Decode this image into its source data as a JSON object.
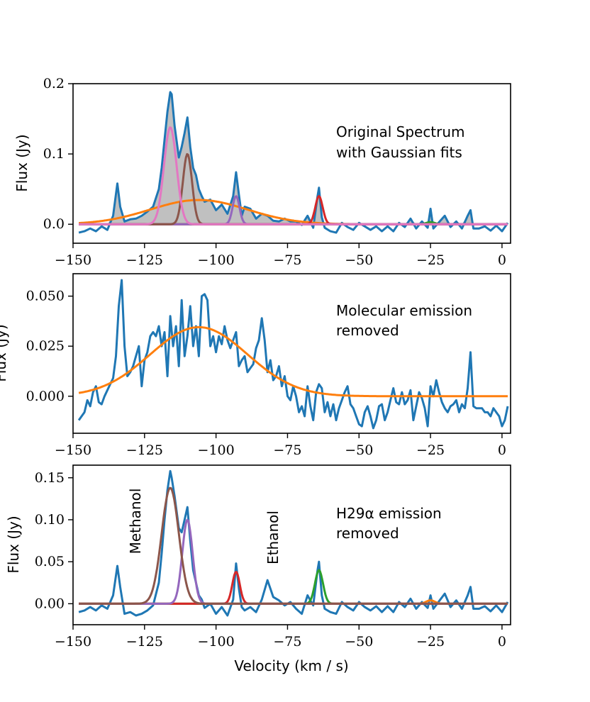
{
  "colors": {
    "observed": "#1f77b4",
    "orange": "#ff7f0e",
    "green": "#2ca02c",
    "red": "#d62728",
    "purple": "#9467bd",
    "brown": "#8c564b",
    "pink": "#e377c2",
    "fill": "#bdbdbd"
  },
  "chart_data": [
    {
      "type": "line",
      "ylabel": "Flux (Jy)",
      "xlabel": "",
      "xlim": [
        -150,
        3
      ],
      "ylim": [
        -0.027,
        0.2
      ],
      "xticks": [
        -150,
        -125,
        -100,
        -75,
        -50,
        -25,
        0
      ],
      "yticks": [
        0.0,
        0.1,
        0.2
      ],
      "ytick_labels": [
        "0.0",
        "0.1",
        "0.2"
      ],
      "annotations": [
        {
          "text": "Original Spectrum",
          "pos": "right"
        },
        {
          "text": "with Gaussian fits",
          "pos": "right"
        }
      ],
      "filled_under_observed": true,
      "series": [
        {
          "role": "observed",
          "color": "#1f77b4",
          "x": [
            -148,
            -146,
            -144,
            -142,
            -140,
            -138,
            -136,
            -134.5,
            -133.5,
            -132,
            -130,
            -128,
            -126,
            -124,
            -122,
            -120,
            -119,
            -118,
            -117,
            -116,
            -115.5,
            -114.5,
            -113,
            -112,
            -111,
            -110,
            -109,
            -108,
            -107,
            -106,
            -105,
            -104,
            -102,
            -100,
            -98,
            -96,
            -94,
            -93,
            -92,
            -91,
            -90,
            -88,
            -86,
            -84,
            -82,
            -80,
            -78,
            -76,
            -74,
            -72,
            -70,
            -68,
            -66,
            -64.5,
            -64,
            -63,
            -62,
            -60,
            -58,
            -56,
            -54,
            -52,
            -50,
            -48,
            -46,
            -44,
            -42,
            -40,
            -38,
            -36,
            -34,
            -32,
            -30,
            -28,
            -26,
            -25,
            -24,
            -22,
            -20,
            -18,
            -16,
            -14,
            -12,
            -11,
            -10,
            -8,
            -6,
            -4,
            -2,
            0,
            2
          ],
          "y": [
            -0.012,
            -0.01,
            -0.006,
            -0.01,
            -0.003,
            -0.008,
            0.012,
            0.058,
            0.025,
            0.004,
            0.007,
            0.008,
            0.012,
            0.018,
            0.025,
            0.05,
            0.08,
            0.12,
            0.16,
            0.188,
            0.185,
            0.14,
            0.095,
            0.11,
            0.13,
            0.152,
            0.11,
            0.08,
            0.07,
            0.05,
            0.04,
            0.032,
            0.035,
            0.02,
            0.028,
            0.015,
            0.04,
            0.074,
            0.042,
            0.012,
            0.025,
            0.022,
            0.008,
            0.015,
            0.012,
            0.005,
            0.004,
            0.008,
            0.004,
            0.004,
            -0.001,
            0.012,
            -0.005,
            0.04,
            0.052,
            0.01,
            -0.005,
            -0.01,
            -0.012,
            0.002,
            -0.004,
            -0.008,
            0.002,
            -0.003,
            -0.008,
            -0.003,
            -0.01,
            -0.003,
            -0.01,
            0.002,
            -0.004,
            0.008,
            -0.006,
            0.004,
            -0.005,
            0.022,
            -0.006,
            0.003,
            0.012,
            -0.004,
            0.004,
            -0.006,
            0.012,
            0.02,
            -0.006,
            -0.006,
            -0.003,
            -0.009,
            -0.002,
            -0.01,
            0.002
          ]
        },
        {
          "role": "fit",
          "color": "#ff7f0e",
          "model": "gauss",
          "amp": 0.0345,
          "center": -106,
          "sigma": 17
        },
        {
          "role": "fit",
          "color": "#2ca02c",
          "model": "gauss",
          "amp": 0.003,
          "center": -25,
          "sigma": 1.5
        },
        {
          "role": "fit",
          "color": "#d62728",
          "model": "gauss",
          "amp": 0.04,
          "center": -64,
          "sigma": 1.3
        },
        {
          "role": "fit",
          "color": "#9467bd",
          "model": "gauss",
          "amp": 0.04,
          "center": -93,
          "sigma": 1.2
        },
        {
          "role": "fit",
          "color": "#8c564b",
          "model": "gauss",
          "amp": 0.1,
          "center": -110,
          "sigma": 1.6
        },
        {
          "role": "fit",
          "color": "#e377c2",
          "model": "gauss",
          "amp": 0.138,
          "center": -116,
          "sigma": 2.2
        }
      ]
    },
    {
      "type": "line",
      "ylabel": "Flux (Jy)",
      "xlabel": "",
      "xlim": [
        -150,
        3
      ],
      "ylim": [
        -0.0185,
        0.0612
      ],
      "xticks": [
        -150,
        -125,
        -100,
        -75,
        -50,
        -25,
        0
      ],
      "yticks": [
        0.0,
        0.025,
        0.05
      ],
      "ytick_labels": [
        "0.000",
        "0.025",
        "0.050"
      ],
      "annotations": [
        {
          "text": "Molecular emission",
          "pos": "right"
        },
        {
          "text": "removed",
          "pos": "right"
        }
      ],
      "series": [
        {
          "role": "observed",
          "color": "#1f77b4",
          "x": [
            -148,
            -147,
            -146,
            -145,
            -144,
            -143,
            -142,
            -141,
            -140,
            -139,
            -138,
            -137,
            -136,
            -135,
            -134,
            -133,
            -132,
            -131,
            -130,
            -129,
            -128,
            -127,
            -126,
            -125,
            -124,
            -123,
            -122,
            -121,
            -120,
            -119,
            -118,
            -117,
            -116,
            -115,
            -114,
            -113,
            -112,
            -111,
            -110,
            -109,
            -108,
            -107,
            -106,
            -105,
            -104,
            -103,
            -102,
            -101,
            -100,
            -99,
            -98,
            -97,
            -96,
            -95,
            -94,
            -93,
            -92,
            -91,
            -90,
            -89,
            -88,
            -87,
            -86,
            -85,
            -84,
            -83,
            -82,
            -81,
            -80,
            -79,
            -78,
            -77,
            -76,
            -75,
            -74,
            -73,
            -72,
            -71,
            -70,
            -69,
            -68,
            -67,
            -66,
            -65,
            -64,
            -63,
            -62,
            -61,
            -60,
            -59,
            -58,
            -57,
            -56,
            -55,
            -54,
            -53,
            -52,
            -51,
            -50,
            -49,
            -48,
            -47,
            -46,
            -45,
            -44,
            -43,
            -42,
            -41,
            -40,
            -39,
            -38,
            -37,
            -36,
            -35,
            -34,
            -33,
            -32,
            -31,
            -30,
            -29,
            -28,
            -27,
            -26,
            -25,
            -24,
            -23,
            -22,
            -21,
            -20,
            -19,
            -18,
            -17,
            -16,
            -15,
            -14,
            -13,
            -12,
            -11,
            -10,
            -9,
            -8,
            -7,
            -6,
            -5,
            -4,
            -3,
            -2,
            -1,
            0,
            1,
            2
          ],
          "y": [
            -0.012,
            -0.01,
            -0.008,
            -0.002,
            -0.005,
            0.002,
            0.005,
            -0.003,
            -0.004,
            0.0,
            0.003,
            0.006,
            0.009,
            0.02,
            0.045,
            0.058,
            0.025,
            0.01,
            0.012,
            0.015,
            0.02,
            0.025,
            0.005,
            0.018,
            0.022,
            0.03,
            0.032,
            0.03,
            0.035,
            0.025,
            0.032,
            0.01,
            0.04,
            0.025,
            0.035,
            0.015,
            0.048,
            0.02,
            0.03,
            0.045,
            0.025,
            0.035,
            0.02,
            0.05,
            0.051,
            0.048,
            0.025,
            0.03,
            0.022,
            0.03,
            0.026,
            0.035,
            0.028,
            0.024,
            0.028,
            0.032,
            0.015,
            0.018,
            0.02,
            0.012,
            0.014,
            0.016,
            0.024,
            0.028,
            0.039,
            0.028,
            0.012,
            0.018,
            0.008,
            0.01,
            0.015,
            0.005,
            0.01,
            0.0,
            -0.002,
            0.005,
            0.0,
            -0.008,
            -0.005,
            -0.01,
            0.005,
            -0.005,
            -0.012,
            0.002,
            0.006,
            0.004,
            -0.008,
            -0.003,
            -0.01,
            -0.004,
            -0.012,
            -0.006,
            -0.002,
            0.002,
            0.005,
            -0.004,
            -0.006,
            -0.01,
            -0.014,
            -0.015,
            -0.008,
            -0.005,
            -0.01,
            -0.016,
            -0.012,
            -0.005,
            -0.004,
            -0.012,
            -0.008,
            -0.002,
            0.004,
            -0.003,
            -0.004,
            0.002,
            -0.004,
            -0.002,
            0.003,
            -0.012,
            -0.005,
            0.002,
            -0.001,
            -0.006,
            -0.015,
            0.005,
            0.0,
            0.008,
            0.002,
            -0.003,
            -0.006,
            -0.008,
            -0.005,
            -0.004,
            -0.002,
            -0.008,
            -0.004,
            -0.006,
            0.004,
            0.022,
            -0.005,
            -0.006,
            -0.006,
            -0.006,
            -0.008,
            -0.008,
            -0.01,
            -0.006,
            -0.008,
            -0.01,
            -0.015,
            -0.012,
            -0.005
          ]
        },
        {
          "role": "fit",
          "color": "#ff7f0e",
          "model": "gauss",
          "amp": 0.0345,
          "center": -106,
          "sigma": 17
        }
      ]
    },
    {
      "type": "line",
      "ylabel": "Flux (Jy)",
      "xlabel": "Velocity (km / s)",
      "xlim": [
        -150,
        3
      ],
      "ylim": [
        -0.025,
        0.165
      ],
      "xticks": [
        -150,
        -125,
        -100,
        -75,
        -50,
        -25,
        0
      ],
      "yticks": [
        0.0,
        0.05,
        0.1,
        0.15
      ],
      "ytick_labels": [
        "0.00",
        "0.05",
        "0.10",
        "0.15"
      ],
      "annotations": [
        {
          "text": "Methanol",
          "pos": "vertical"
        },
        {
          "text": "Ethanol",
          "pos": "vertical"
        },
        {
          "text": "H29α emission",
          "pos": "right"
        },
        {
          "text": "removed",
          "pos": "right"
        }
      ],
      "series": [
        {
          "role": "observed",
          "color": "#1f77b4",
          "x": [
            -148,
            -146,
            -144,
            -142,
            -140,
            -138,
            -136,
            -134.5,
            -133.5,
            -132,
            -130,
            -128,
            -126,
            -124,
            -122,
            -120,
            -119,
            -118,
            -117,
            -116,
            -115.5,
            -114.5,
            -113,
            -112,
            -111,
            -110,
            -109,
            -108,
            -107,
            -106,
            -105,
            -104,
            -102,
            -100,
            -98,
            -96,
            -94,
            -93,
            -92,
            -91,
            -90,
            -88,
            -86,
            -84,
            -82,
            -80,
            -78,
            -76,
            -74,
            -72,
            -70,
            -68,
            -66,
            -64.5,
            -64,
            -63,
            -62,
            -60,
            -58,
            -56,
            -54,
            -52,
            -50,
            -48,
            -46,
            -44,
            -42,
            -40,
            -38,
            -36,
            -34,
            -32,
            -30,
            -28,
            -26,
            -25,
            -24,
            -22,
            -20,
            -18,
            -16,
            -14,
            -12,
            -11,
            -10,
            -8,
            -6,
            -4,
            -2,
            0,
            2
          ],
          "y": [
            -0.01,
            -0.008,
            -0.004,
            -0.008,
            -0.002,
            -0.006,
            0.01,
            0.045,
            0.02,
            -0.012,
            -0.01,
            -0.014,
            -0.012,
            -0.008,
            -0.002,
            0.025,
            0.06,
            0.1,
            0.135,
            0.158,
            0.15,
            0.128,
            0.09,
            0.085,
            0.1,
            0.115,
            0.075,
            0.04,
            0.025,
            0.01,
            0.005,
            -0.005,
            0.0,
            -0.012,
            -0.004,
            -0.014,
            0.005,
            0.048,
            0.018,
            -0.004,
            -0.008,
            -0.004,
            -0.01,
            0.005,
            0.028,
            0.008,
            0.004,
            -0.002,
            0.002,
            -0.006,
            -0.012,
            0.01,
            -0.002,
            0.04,
            0.05,
            0.01,
            -0.006,
            -0.01,
            -0.012,
            0.002,
            -0.004,
            -0.008,
            0.002,
            -0.004,
            -0.008,
            -0.003,
            -0.01,
            -0.003,
            -0.01,
            0.002,
            -0.004,
            0.006,
            -0.006,
            0.002,
            -0.005,
            0.01,
            -0.006,
            0.003,
            0.012,
            -0.004,
            0.004,
            -0.006,
            0.01,
            0.02,
            -0.006,
            -0.006,
            -0.003,
            -0.009,
            -0.002,
            -0.01,
            0.002
          ]
        },
        {
          "role": "fit",
          "color": "#ff7f0e",
          "model": "gauss",
          "amp": 0.004,
          "center": -25,
          "sigma": 1.5
        },
        {
          "role": "fit",
          "color": "#2ca02c",
          "model": "gauss",
          "amp": 0.04,
          "center": -64,
          "sigma": 1.4
        },
        {
          "role": "fit",
          "color": "#d62728",
          "model": "gauss",
          "amp": 0.038,
          "center": -93,
          "sigma": 1.3
        },
        {
          "role": "fit",
          "color": "#9467bd",
          "model": "gauss",
          "amp": 0.1,
          "center": -110,
          "sigma": 1.8
        },
        {
          "role": "fit",
          "color": "#8c564b",
          "model": "gauss",
          "amp": 0.138,
          "center": -116,
          "sigma": 3.0
        }
      ]
    }
  ],
  "texts": {
    "p1_ylabel": "Flux (Jy)",
    "p1_ann1": "Original Spectrum",
    "p1_ann2": "with Gaussian fits",
    "p2_ylabel": "Flux (Jy)",
    "p2_ann1": "Molecular emission",
    "p2_ann2": "removed",
    "p3_ylabel": "Flux (Jy)",
    "p3_ann_methanol": "Methanol",
    "p3_ann_ethanol": "Ethanol",
    "p3_ann1": "H29α emission",
    "p3_ann2": "removed",
    "xlabel": "Velocity (km / s)"
  }
}
